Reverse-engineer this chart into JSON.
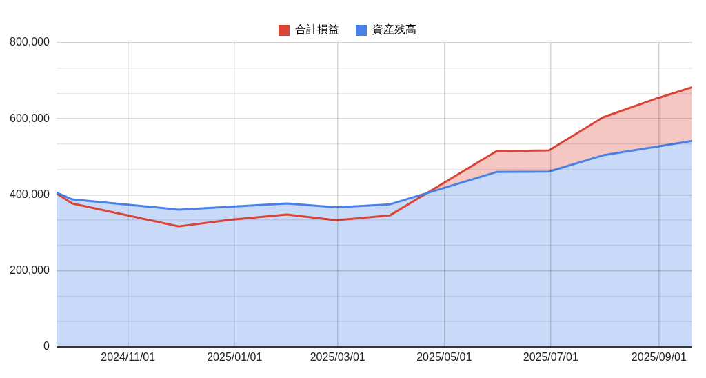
{
  "chart_data": {
    "type": "area",
    "x": [
      "2024-09-21",
      "2024-09-30",
      "2024-11-30",
      "2024-12-31",
      "2025-01-31",
      "2025-02-28",
      "2025-03-31",
      "2025-05-31",
      "2025-06-30",
      "2025-07-31",
      "2025-08-31",
      "2025-09-20"
    ],
    "series": [
      {
        "name": "合計損益",
        "color": "#db4437",
        "values": [
          404000,
          377000,
          317000,
          335000,
          348000,
          333000,
          346000,
          515000,
          517000,
          604000,
          654000,
          683000
        ]
      },
      {
        "name": "資産残高",
        "color": "#4a80e8",
        "values": [
          406000,
          388000,
          361000,
          369000,
          377000,
          367000,
          375000,
          460000,
          461000,
          504000,
          527000,
          542000
        ]
      }
    ],
    "xlim": [
      "2024-09-21",
      "2025-09-20"
    ],
    "xticks": [
      {
        "value": "2024-11-01",
        "label": "2024/11/01"
      },
      {
        "value": "2025-01-01",
        "label": "2025/01/01"
      },
      {
        "value": "2025-03-01",
        "label": "2025/03/01"
      },
      {
        "value": "2025-05-01",
        "label": "2025/05/01"
      },
      {
        "value": "2025-07-01",
        "label": "2025/07/01"
      },
      {
        "value": "2025-09-01",
        "label": "2025/09/01"
      }
    ],
    "ylim": [
      0,
      800000
    ],
    "yticks": [
      {
        "value": 0,
        "label": "0"
      },
      {
        "value": 66667,
        "label": null
      },
      {
        "value": 133333,
        "label": null
      },
      {
        "value": 200000,
        "label": "200,000"
      },
      {
        "value": 266667,
        "label": null
      },
      {
        "value": 333333,
        "label": null
      },
      {
        "value": 400000,
        "label": "400,000"
      },
      {
        "value": 466667,
        "label": null
      },
      {
        "value": 533333,
        "label": null
      },
      {
        "value": 600000,
        "label": "600,000"
      },
      {
        "value": 666667,
        "label": null
      },
      {
        "value": 733333,
        "label": null
      },
      {
        "value": 800000,
        "label": "800,000"
      }
    ],
    "grid": true,
    "legend": "top",
    "marker": "none",
    "line_style": "solid"
  }
}
